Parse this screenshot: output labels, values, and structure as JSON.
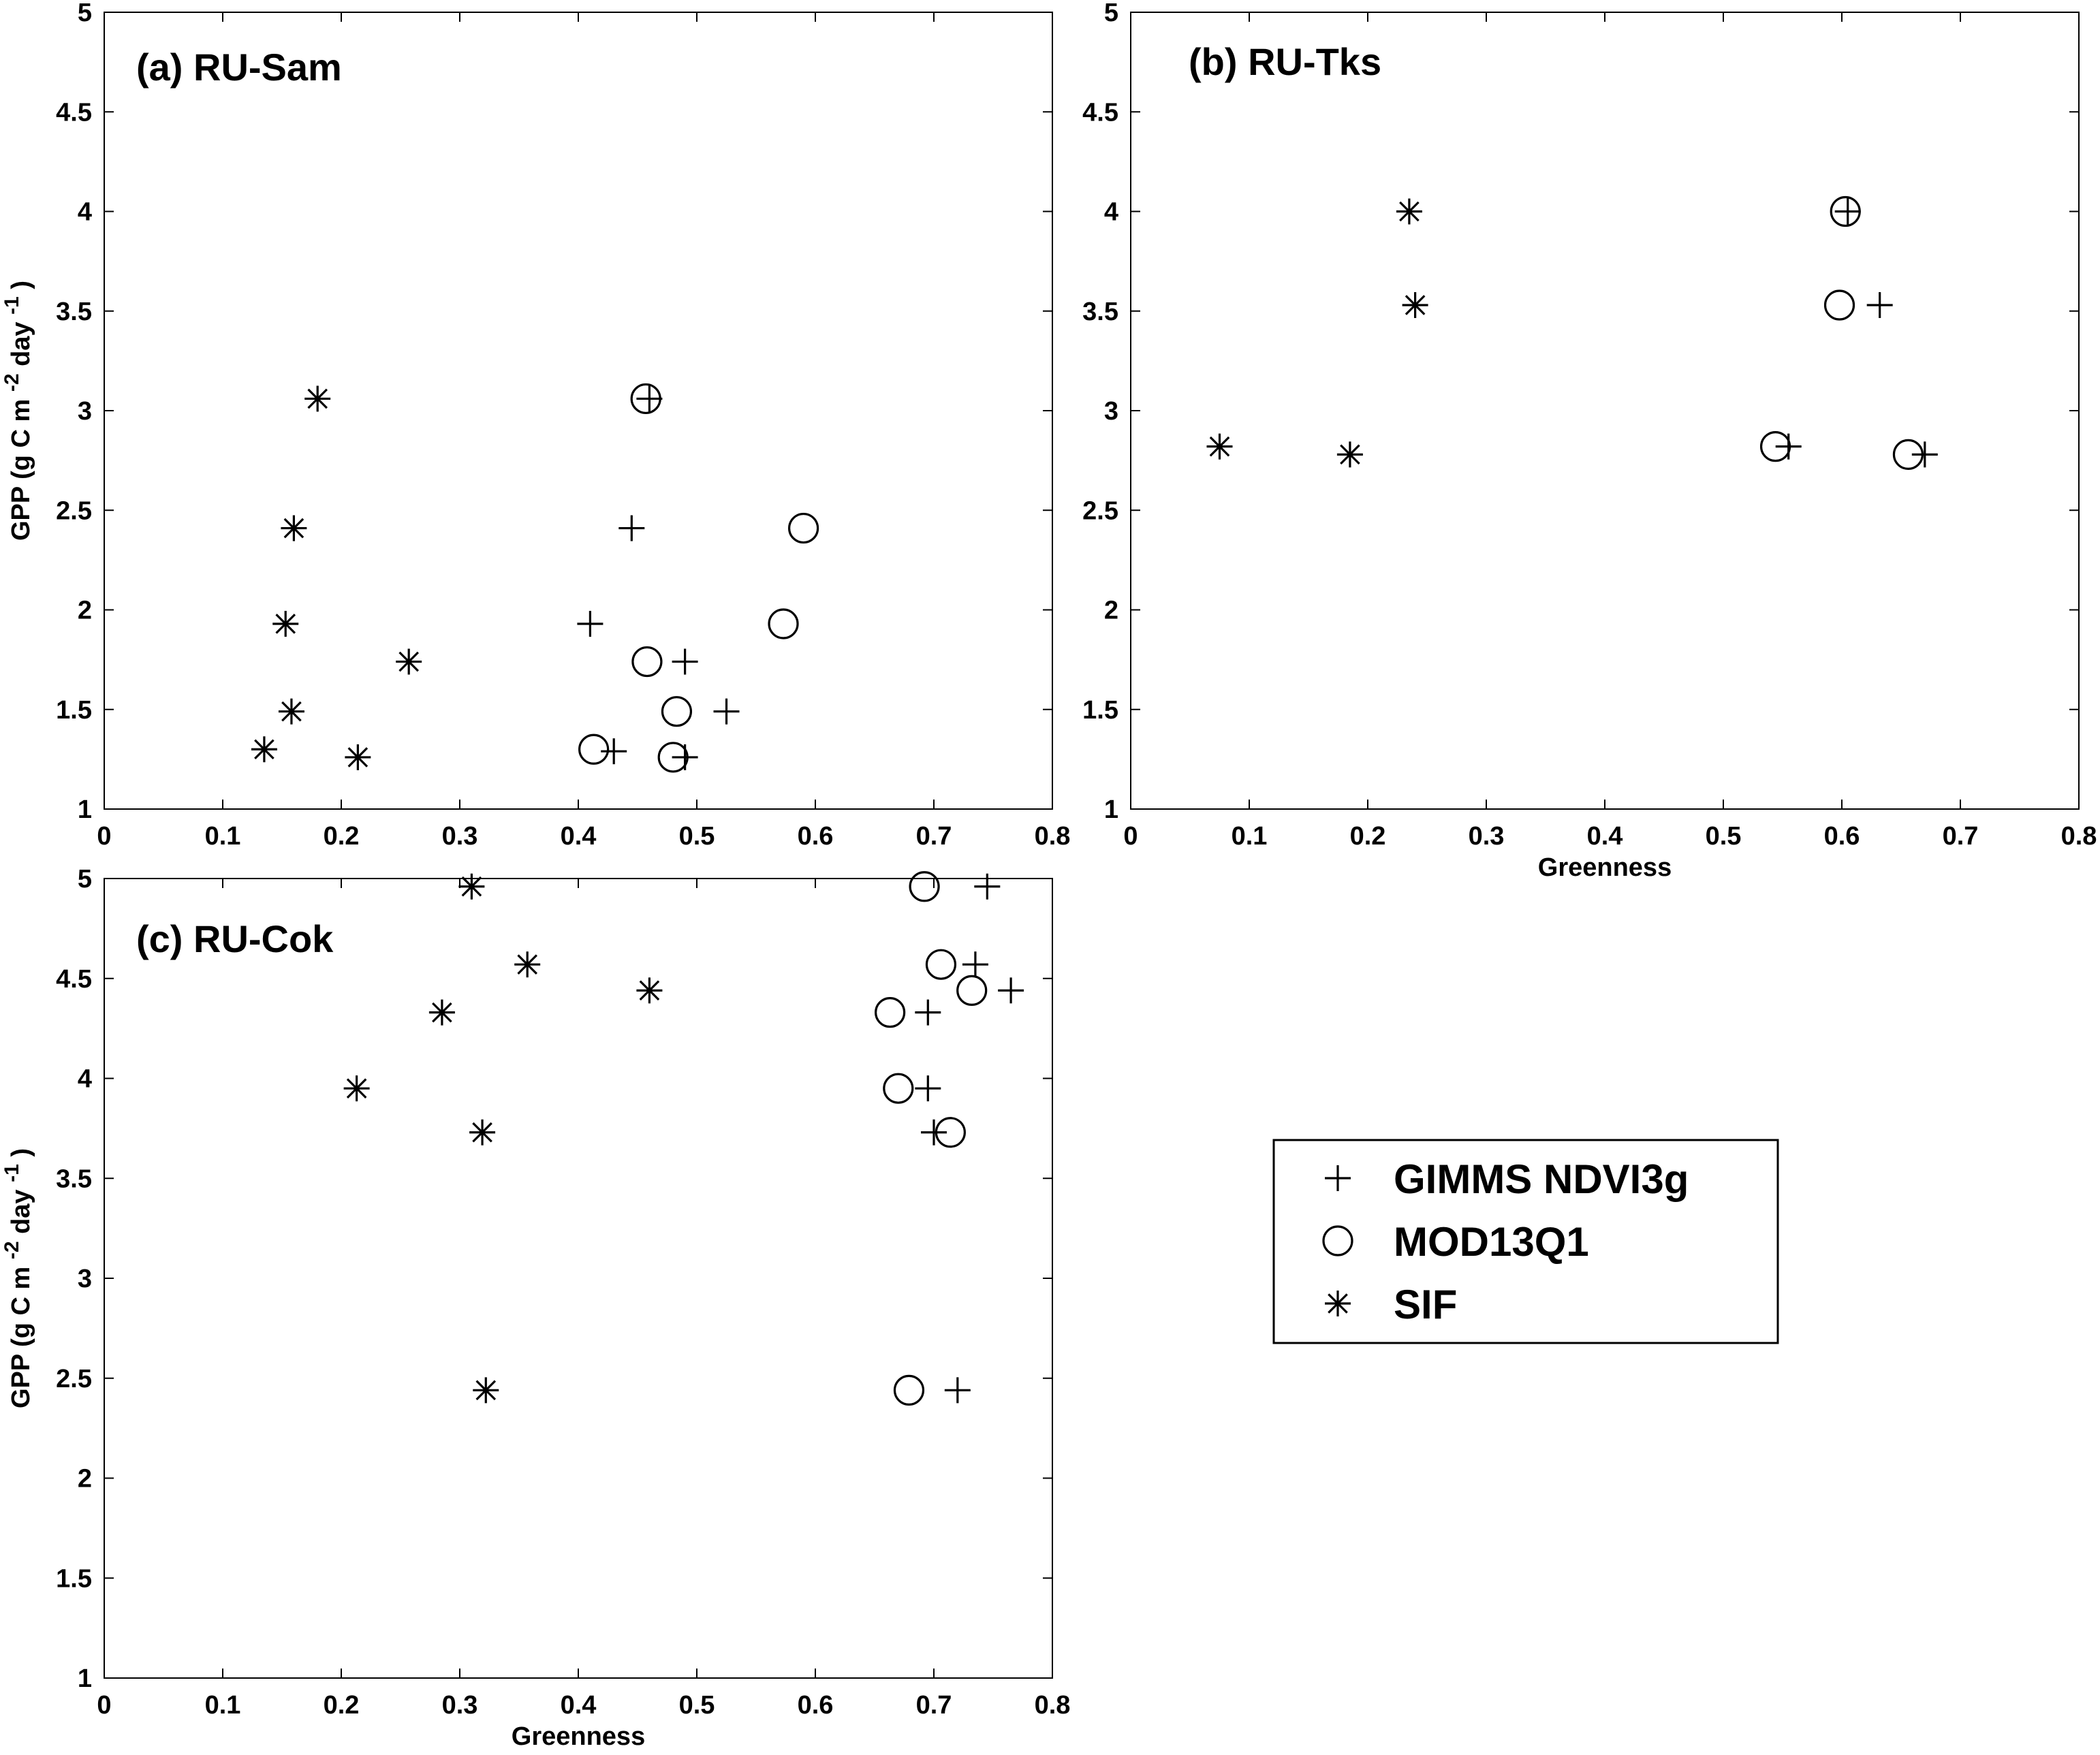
{
  "chart_data": [
    {
      "id": "a",
      "type": "scatter",
      "title": "(a) RU-Sam",
      "xlabel": "",
      "ylabel": "GPP (g C m -2 day -1 )",
      "xlim": [
        0,
        0.8
      ],
      "ylim": [
        1,
        5
      ],
      "xticks": [
        "0",
        "0.1",
        "0.2",
        "0.3",
        "0.4",
        "0.5",
        "0.6",
        "0.7",
        "0.8"
      ],
      "yticks": [
        "1",
        "1.5",
        "2",
        "2.5",
        "3",
        "3.5",
        "4",
        "4.5",
        "5"
      ],
      "series": [
        {
          "name": "GIMMS NDVI3g",
          "marker": "plus",
          "points": [
            [
              0.46,
              3.06
            ],
            [
              0.445,
              2.41
            ],
            [
              0.41,
              1.93
            ],
            [
              0.49,
              1.74
            ],
            [
              0.525,
              1.49
            ],
            [
              0.43,
              1.29
            ],
            [
              0.49,
              1.26
            ]
          ]
        },
        {
          "name": "MOD13Q1",
          "marker": "circle",
          "points": [
            [
              0.457,
              3.06
            ],
            [
              0.59,
              2.41
            ],
            [
              0.573,
              1.93
            ],
            [
              0.458,
              1.74
            ],
            [
              0.483,
              1.49
            ],
            [
              0.413,
              1.3
            ],
            [
              0.48,
              1.26
            ]
          ]
        },
        {
          "name": "SIF",
          "marker": "star",
          "points": [
            [
              0.18,
              3.06
            ],
            [
              0.16,
              2.41
            ],
            [
              0.153,
              1.93
            ],
            [
              0.257,
              1.74
            ],
            [
              0.158,
              1.49
            ],
            [
              0.135,
              1.3
            ],
            [
              0.214,
              1.26
            ]
          ]
        }
      ]
    },
    {
      "id": "b",
      "type": "scatter",
      "title": "(b) RU-Tks",
      "xlabel": "Greenness",
      "ylabel": "",
      "xlim": [
        0,
        0.8
      ],
      "ylim": [
        1,
        5
      ],
      "xticks": [
        "0",
        "0.1",
        "0.2",
        "0.3",
        "0.4",
        "0.5",
        "0.6",
        "0.7",
        "0.8"
      ],
      "yticks": [
        "1",
        "1.5",
        "2",
        "2.5",
        "3",
        "3.5",
        "4",
        "4.5",
        "5"
      ],
      "series": [
        {
          "name": "GIMMS NDVI3g",
          "marker": "plus",
          "points": [
            [
              0.605,
              4.0
            ],
            [
              0.632,
              3.53
            ],
            [
              0.555,
              2.82
            ],
            [
              0.67,
              2.78
            ]
          ]
        },
        {
          "name": "MOD13Q1",
          "marker": "circle",
          "points": [
            [
              0.603,
              4.0
            ],
            [
              0.598,
              3.53
            ],
            [
              0.544,
              2.82
            ],
            [
              0.656,
              2.78
            ]
          ]
        },
        {
          "name": "SIF",
          "marker": "star",
          "points": [
            [
              0.235,
              4.0
            ],
            [
              0.24,
              3.53
            ],
            [
              0.075,
              2.82
            ],
            [
              0.185,
              2.78
            ]
          ]
        }
      ]
    },
    {
      "id": "c",
      "type": "scatter",
      "title": "(c) RU-Cok",
      "xlabel": "Greenness",
      "ylabel": "GPP (g C m -2 day -1 )",
      "xlim": [
        0,
        0.8
      ],
      "ylim": [
        1,
        5
      ],
      "xticks": [
        "0",
        "0.1",
        "0.2",
        "0.3",
        "0.4",
        "0.5",
        "0.6",
        "0.7",
        "0.8"
      ],
      "yticks": [
        "1",
        "1.5",
        "2",
        "2.5",
        "3",
        "3.5",
        "4",
        "4.5",
        "5"
      ],
      "series": [
        {
          "name": "GIMMS NDVI3g",
          "marker": "plus",
          "points": [
            [
              0.745,
              4.96
            ],
            [
              0.735,
              4.57
            ],
            [
              0.765,
              4.44
            ],
            [
              0.695,
              4.33
            ],
            [
              0.695,
              3.95
            ],
            [
              0.7,
              3.73
            ],
            [
              0.72,
              2.44
            ]
          ]
        },
        {
          "name": "MOD13Q1",
          "marker": "circle",
          "points": [
            [
              0.692,
              4.96
            ],
            [
              0.706,
              4.57
            ],
            [
              0.732,
              4.44
            ],
            [
              0.663,
              4.33
            ],
            [
              0.67,
              3.95
            ],
            [
              0.714,
              3.73
            ],
            [
              0.679,
              2.44
            ]
          ]
        },
        {
          "name": "SIF",
          "marker": "star",
          "points": [
            [
              0.31,
              4.96
            ],
            [
              0.357,
              4.57
            ],
            [
              0.46,
              4.44
            ],
            [
              0.285,
              4.33
            ],
            [
              0.213,
              3.95
            ],
            [
              0.319,
              3.73
            ],
            [
              0.322,
              2.44
            ]
          ]
        }
      ]
    }
  ],
  "legend": {
    "items": [
      {
        "label": "GIMMS NDVI3g",
        "marker": "plus"
      },
      {
        "label": "MOD13Q1",
        "marker": "circle"
      },
      {
        "label": "SIF",
        "marker": "star"
      }
    ]
  }
}
